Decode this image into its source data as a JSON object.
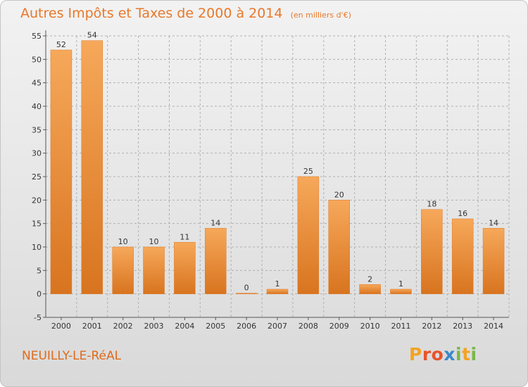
{
  "title": "Autres Impôts et Taxes de 2000 à 2014",
  "subtitle": "(en milliers d'€)",
  "town": "NEUILLY-LE-RéAL",
  "logo": {
    "text": "Proxiti",
    "colors": [
      "#f2a324",
      "#e8532a",
      "#3a88c8",
      "#7ab648"
    ]
  },
  "colors": {
    "bar": "#f0892e",
    "bar_light": "#f6a85a",
    "bar_dark": "#d8741f",
    "title": "#e8782a",
    "grid": "#b0b0b0"
  },
  "chart_data": {
    "type": "bar",
    "categories": [
      "2000",
      "2001",
      "2002",
      "2003",
      "2004",
      "2005",
      "2006",
      "2007",
      "2008",
      "2009",
      "2010",
      "2011",
      "2012",
      "2013",
      "2014"
    ],
    "values": [
      52,
      54,
      10,
      10,
      11,
      14,
      0,
      1,
      25,
      20,
      2,
      1,
      18,
      16,
      14
    ],
    "ylim": [
      -5,
      55
    ],
    "yticks": [
      -5,
      0,
      5,
      10,
      15,
      20,
      25,
      30,
      35,
      40,
      45,
      50,
      55
    ],
    "grid": true,
    "xlabel": "",
    "ylabel": ""
  }
}
